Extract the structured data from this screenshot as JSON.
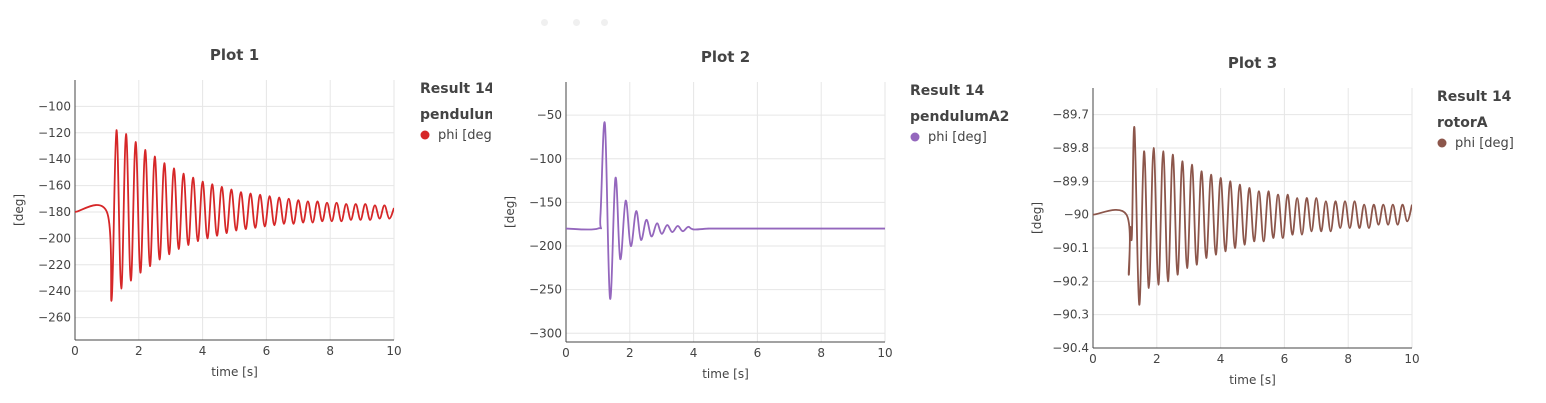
{
  "chart_data": [
    {
      "type": "line",
      "title": "Plot 1",
      "xlabel": "time [s]",
      "ylabel": "[deg]",
      "xlim": [
        0,
        10
      ],
      "ylim": [
        -277,
        -80
      ],
      "xticks": [
        0,
        2,
        4,
        6,
        8,
        10
      ],
      "yticks": [
        -260,
        -240,
        -220,
        -200,
        -180,
        -160,
        -140,
        -120,
        -100
      ],
      "yticklabels": [
        "−260",
        "−240",
        "−220",
        "−200",
        "−180",
        "−160",
        "−140",
        "−120",
        "−100"
      ],
      "grid": true,
      "legend_title": [
        "Result 14",
        "pendulumA"
      ],
      "legend_placement": "right",
      "series": [
        {
          "name": "phi [deg]",
          "color": "#d62728",
          "x": [
            0,
            1.0,
            1.15,
            1.3,
            1.45,
            1.6,
            1.75,
            1.9,
            2.05,
            2.2,
            2.35,
            2.5,
            2.65,
            2.8,
            2.95,
            3.1,
            3.25,
            3.4,
            3.55,
            3.7,
            3.85,
            4.0,
            4.15,
            4.3,
            4.45,
            4.6,
            4.75,
            4.9,
            5.05,
            5.2,
            5.35,
            5.5,
            5.65,
            5.8,
            5.95,
            6.1,
            6.25,
            6.4,
            6.55,
            6.7,
            6.85,
            7.0,
            7.15,
            7.3,
            7.45,
            7.6,
            7.75,
            7.9,
            8.05,
            8.2,
            8.35,
            8.5,
            8.65,
            8.8,
            8.95,
            9.1,
            9.25,
            9.4,
            9.55,
            9.7,
            9.85,
            10.0
          ],
          "y": [
            -180,
            -180,
            -246,
            -118,
            -238,
            -121,
            -232,
            -127,
            -226,
            -133,
            -221,
            -138,
            -216,
            -143,
            -212,
            -147,
            -208,
            -151,
            -205,
            -154,
            -202,
            -157,
            -200,
            -159,
            -198,
            -161,
            -196,
            -163,
            -194,
            -165,
            -193,
            -166,
            -192,
            -167,
            -191,
            -168,
            -190,
            -169,
            -189,
            -170,
            -189,
            -171,
            -188,
            -172,
            -188,
            -172,
            -187,
            -173,
            -187,
            -173,
            -187,
            -174,
            -186,
            -174,
            -186,
            -174,
            -186,
            -175,
            -185,
            -175,
            -185,
            -177
          ]
        }
      ]
    },
    {
      "type": "line",
      "title": "Plot 2",
      "xlabel": "time [s]",
      "ylabel": "[deg]",
      "xlim": [
        0,
        10
      ],
      "ylim": [
        -310,
        -12
      ],
      "xticks": [
        0,
        2,
        4,
        6,
        8,
        10
      ],
      "yticks": [
        -300,
        -250,
        -200,
        -150,
        -100,
        -50
      ],
      "yticklabels": [
        "−300",
        "−250",
        "−200",
        "−150",
        "−100",
        "−50"
      ],
      "grid": true,
      "legend_title": [
        "Result 14",
        "pendulumA2"
      ],
      "legend_placement": "right",
      "series": [
        {
          "name": "phi [deg]",
          "color": "#9467bd",
          "x": [
            0,
            1.0,
            1.08,
            1.22,
            1.38,
            1.55,
            1.7,
            1.87,
            2.03,
            2.2,
            2.35,
            2.52,
            2.68,
            2.85,
            3.0,
            3.17,
            3.33,
            3.5,
            3.66,
            3.83,
            4.0,
            4.5,
            5.0,
            10.0
          ],
          "y": [
            -180,
            -180,
            -165,
            -60,
            -260,
            -122,
            -215,
            -148,
            -200,
            -160,
            -193,
            -170,
            -189,
            -174,
            -186,
            -176,
            -184,
            -177,
            -183,
            -178,
            -181,
            -180,
            -180,
            -180
          ]
        }
      ]
    },
    {
      "type": "line",
      "title": "Plot 3",
      "xlabel": "time [s]",
      "ylabel": "[deg]",
      "xlim": [
        0,
        10
      ],
      "ylim": [
        -90.4,
        -89.62
      ],
      "xticks": [
        0,
        2,
        4,
        6,
        8,
        10
      ],
      "yticks": [
        -90.4,
        -90.3,
        -90.2,
        -90.1,
        -90.0,
        -89.9,
        -89.8,
        -89.7
      ],
      "yticklabels": [
        "−90.4",
        "−90.3",
        "−90.2",
        "−90.1",
        "−90",
        "−89.9",
        "−89.8",
        "−89.7"
      ],
      "grid": true,
      "legend_title": [
        "Result 14",
        "rotorA"
      ],
      "legend_placement": "right",
      "series": [
        {
          "name": "phi [deg]",
          "color": "#8c564b",
          "x": [
            0,
            1.05,
            1.12,
            1.17,
            1.22,
            1.3,
            1.45,
            1.6,
            1.75,
            1.9,
            2.05,
            2.2,
            2.35,
            2.5,
            2.65,
            2.8,
            2.95,
            3.1,
            3.25,
            3.4,
            3.55,
            3.7,
            3.85,
            4.0,
            4.15,
            4.3,
            4.45,
            4.6,
            4.75,
            4.9,
            5.05,
            5.2,
            5.35,
            5.5,
            5.65,
            5.8,
            5.95,
            6.1,
            6.25,
            6.4,
            6.55,
            6.7,
            6.85,
            7.0,
            7.15,
            7.3,
            7.45,
            7.6,
            7.75,
            7.9,
            8.05,
            8.2,
            8.35,
            8.5,
            8.65,
            8.8,
            8.95,
            9.1,
            9.25,
            9.4,
            9.55,
            9.7,
            9.85,
            10.0
          ],
          "y": [
            -90.0,
            -90.0,
            -90.18,
            -90.04,
            -90.06,
            -89.74,
            -90.27,
            -89.81,
            -90.22,
            -89.8,
            -90.21,
            -89.81,
            -90.2,
            -89.82,
            -90.18,
            -89.84,
            -90.16,
            -89.85,
            -90.15,
            -89.87,
            -90.13,
            -89.88,
            -90.12,
            -89.89,
            -90.11,
            -89.9,
            -90.1,
            -89.91,
            -90.09,
            -89.92,
            -90.08,
            -89.93,
            -90.08,
            -89.93,
            -90.07,
            -89.94,
            -90.07,
            -89.94,
            -90.06,
            -89.95,
            -90.06,
            -89.95,
            -90.05,
            -89.95,
            -90.05,
            -89.96,
            -90.05,
            -89.96,
            -90.04,
            -89.96,
            -90.04,
            -89.96,
            -90.04,
            -89.97,
            -90.04,
            -89.97,
            -90.03,
            -89.97,
            -90.03,
            -89.97,
            -90.03,
            -89.97,
            -90.02,
            -89.97
          ]
        }
      ]
    }
  ]
}
